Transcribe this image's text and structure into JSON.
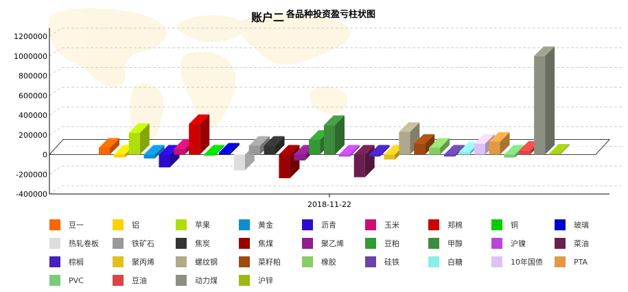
{
  "chart_data": {
    "type": "bar",
    "title_main": "账户二",
    "title_sub": "各品种投资盈亏柱状图",
    "category": "2018-11-22",
    "ylim": [
      -400000,
      1200000
    ],
    "yticks": [
      -400000,
      -200000,
      0,
      200000,
      400000,
      600000,
      800000,
      1000000,
      1200000
    ],
    "grid": true,
    "legend_position": "bottom",
    "series": [
      {
        "name": "豆一",
        "value": 70000,
        "color": "#FF6600"
      },
      {
        "name": "铝",
        "value": -30000,
        "color": "#FCD202"
      },
      {
        "name": "苹果",
        "value": 220000,
        "color": "#B0DE09"
      },
      {
        "name": "黄金",
        "value": -40000,
        "color": "#0D8ECF"
      },
      {
        "name": "沥青",
        "value": -130000,
        "color": "#2A0CD0"
      },
      {
        "name": "玉米",
        "value": 60000,
        "color": "#CD0D74"
      },
      {
        "name": "郑棉",
        "value": 310000,
        "color": "#CC0000"
      },
      {
        "name": "铜",
        "value": -10000,
        "color": "#00CC00"
      },
      {
        "name": "玻璃",
        "value": 20000,
        "color": "#0000CC"
      },
      {
        "name": "热轧卷板",
        "value": -160000,
        "color": "#DDDDDD"
      },
      {
        "name": "铁矿石",
        "value": 90000,
        "color": "#999999"
      },
      {
        "name": "焦炭",
        "value": 90000,
        "color": "#333333"
      },
      {
        "name": "焦煤",
        "value": -240000,
        "color": "#990000"
      },
      {
        "name": "聚乙烯",
        "value": -60000,
        "color": "#8F1F8F"
      },
      {
        "name": "豆粕",
        "value": 150000,
        "color": "#339933"
      },
      {
        "name": "甲醇",
        "value": 300000,
        "color": "#3D8C3D"
      },
      {
        "name": "沪镍",
        "value": -20000,
        "color": "#BB44DD"
      },
      {
        "name": "菜油",
        "value": -230000,
        "color": "#6A1F4F"
      },
      {
        "name": "棕榈",
        "value": -20000,
        "color": "#4422BB"
      },
      {
        "name": "聚丙烯",
        "value": -50000,
        "color": "#E0C020"
      },
      {
        "name": "螺纹钢",
        "value": 230000,
        "color": "#B0A88A"
      },
      {
        "name": "菜籽粕",
        "value": 110000,
        "color": "#A04A10"
      },
      {
        "name": "橡胶",
        "value": 70000,
        "color": "#88CC66"
      },
      {
        "name": "硅铁",
        "value": -20000,
        "color": "#6644AA"
      },
      {
        "name": "白糖",
        "value": 30000,
        "color": "#88EEE6"
      },
      {
        "name": "10年国债",
        "value": 110000,
        "color": "#DDC2F7"
      },
      {
        "name": "PTA",
        "value": 130000,
        "color": "#E09A44"
      },
      {
        "name": "PVC",
        "value": -30000,
        "color": "#77CC77"
      },
      {
        "name": "豆油",
        "value": 40000,
        "color": "#DD4444"
      },
      {
        "name": "动力煤",
        "value": 1000000,
        "color": "#8C9080"
      },
      {
        "name": "沪锌",
        "value": 10000,
        "color": "#99BB11"
      }
    ]
  }
}
